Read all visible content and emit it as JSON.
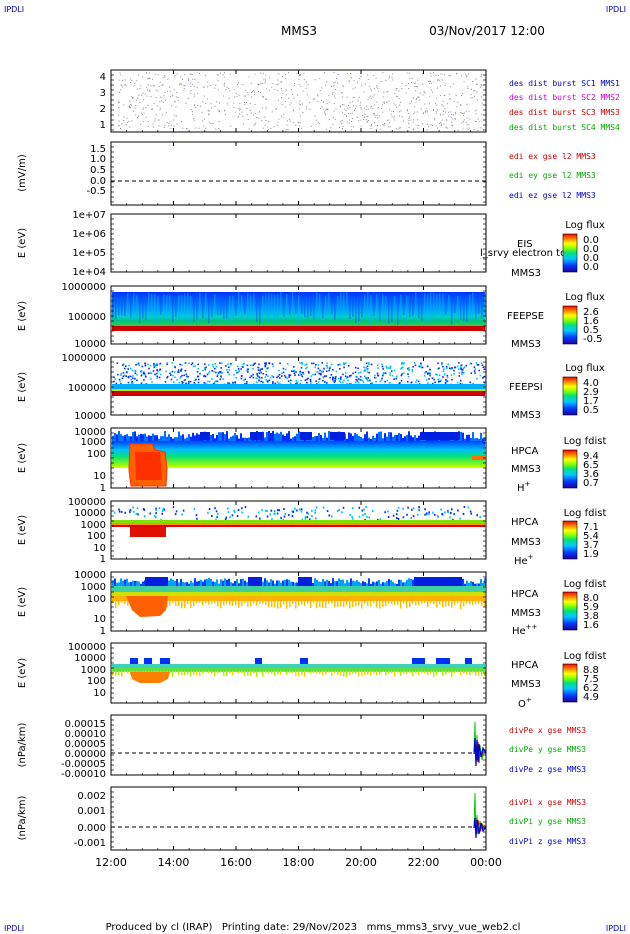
{
  "corner_marks": [
    "IPDLI",
    "IPDLI",
    "IPDLI",
    "IPDLI"
  ],
  "header": {
    "spacecraft": "MMS3",
    "date": "03/Nov/2017 12:00"
  },
  "footer": {
    "text": "Produced by cl (IRAP)   Printing date: 29/Nov/2023   mms_mms3_srvy_vue_web2.cl"
  },
  "colors": {
    "red": "#cc0000",
    "green": "#00cc00",
    "blue": "#0000cc",
    "magenta": "#cc00cc",
    "black": "#000000"
  },
  "chart_data": {
    "type": "multi-panel time series / spectrograms",
    "x": {
      "ticks": [
        "12:00",
        "14:00",
        "16:00",
        "18:00",
        "20:00",
        "22:00",
        "00:00"
      ],
      "range": [
        "12:00",
        "00:00"
      ]
    },
    "panels": [
      {
        "id": "des-dist",
        "type": "scatter",
        "ylabel": "",
        "yticks": [
          "4",
          "3",
          "2",
          "1"
        ],
        "ylim": [
          0.6,
          4.4
        ],
        "legend": [
          {
            "label": "des dist burst SC1 MMS1",
            "color": "#0000cc"
          },
          {
            "label": "des dist burst SC2 MMS2",
            "color": "#cc00cc"
          },
          {
            "label": "des dist burst SC3 MMS3",
            "color": "#cc0000"
          },
          {
            "label": "des dist burst SC4 MMS4",
            "color": "#00cc00"
          }
        ]
      },
      {
        "id": "edi-e",
        "type": "line",
        "ylabel": "(mV/m)",
        "yticks": [
          "1.5",
          "1.0",
          "0.5",
          "0.0",
          "-0.5"
        ],
        "ylim": [
          -0.8,
          1.8
        ],
        "legend": [
          {
            "label": "edi ex gse l2 MMS3",
            "color": "#cc0000"
          },
          {
            "label": "edi ey gse l2 MMS3",
            "color": "#00cc00"
          },
          {
            "label": "edi ez gse l2 MMS3",
            "color": "#0000cc"
          }
        ]
      },
      {
        "id": "eis",
        "type": "heatmap",
        "ylabel": "E (eV)",
        "yticks": [
          "1e+07",
          "1e+06",
          "1e+05",
          "1e+04"
        ],
        "ylim": [
          10000,
          10000000
        ],
        "instrument": "EIS",
        "species": "",
        "sc": "MMS3",
        "overlay": "l_srvy electron to",
        "cbar_title": "Log flux",
        "cbar_ticks": [
          "0.0",
          "0.0",
          "0.0",
          "0.0"
        ]
      },
      {
        "id": "feepse",
        "type": "heatmap",
        "ylabel": "E (eV)",
        "yticks": [
          "1000000",
          "100000",
          "10000"
        ],
        "ylim": [
          10000,
          1000000
        ],
        "instrument": "FEEPSE",
        "species": "",
        "sc": "MMS3",
        "cbar_title": "Log flux",
        "cbar_ticks": [
          "2.6",
          "1.6",
          "0.5",
          "-0.5"
        ]
      },
      {
        "id": "feepsi",
        "type": "heatmap",
        "ylabel": "E (eV)",
        "yticks": [
          "1000000",
          "100000",
          "10000"
        ],
        "ylim": [
          10000,
          1000000
        ],
        "instrument": "FEEPSI",
        "species": "",
        "sc": "MMS3",
        "cbar_title": "Log flux",
        "cbar_ticks": [
          "4.0",
          "2.9",
          "1.7",
          "0.5"
        ]
      },
      {
        "id": "hpca-h",
        "type": "heatmap",
        "ylabel": "E (eV)",
        "yticks": [
          "10000",
          "1000",
          "100",
          "10",
          "1"
        ],
        "ylim": [
          1,
          40000
        ],
        "instrument": "HPCA",
        "sc": "MMS3",
        "species": "H",
        "species_sup": "+",
        "cbar_title": "Log fdist",
        "cbar_ticks": [
          "9.4",
          "6.5",
          "3.6",
          "0.7"
        ]
      },
      {
        "id": "hpca-he",
        "type": "heatmap",
        "ylabel": "E (eV)",
        "yticks": [
          "100000",
          "10000",
          "1000",
          "100",
          "10",
          "1"
        ],
        "ylim": [
          1,
          100000
        ],
        "instrument": "HPCA",
        "sc": "MMS3",
        "species": "He",
        "species_sup": "+",
        "cbar_title": "Log fdist",
        "cbar_ticks": [
          "7.1",
          "5.4",
          "3.7",
          "1.9"
        ]
      },
      {
        "id": "hpca-hepp",
        "type": "heatmap",
        "ylabel": "E (eV)",
        "yticks": [
          "10000",
          "1000",
          "100",
          "10",
          "1"
        ],
        "ylim": [
          1,
          40000
        ],
        "instrument": "HPCA",
        "sc": "MMS3",
        "species": "He",
        "species_sup": "++",
        "cbar_title": "Log fdist",
        "cbar_ticks": [
          "8.0",
          "5.9",
          "3.8",
          "1.6"
        ]
      },
      {
        "id": "hpca-o",
        "type": "heatmap",
        "ylabel": "E (eV)",
        "yticks": [
          "100000",
          "10000",
          "1000",
          "100",
          "10"
        ],
        "ylim": [
          10,
          100000
        ],
        "instrument": "HPCA",
        "sc": "MMS3",
        "species": "O",
        "species_sup": "+",
        "cbar_title": "Log fdist",
        "cbar_ticks": [
          "8.8",
          "7.5",
          "6.2",
          "4.9"
        ]
      },
      {
        "id": "divpe",
        "type": "line",
        "ylabel": "(nPa/km)",
        "yticks": [
          "0.00015",
          "0.00010",
          "0.00005",
          "0.00000",
          "-0.00005",
          "-0.00010"
        ],
        "ylim": [
          -0.00011,
          0.00018
        ],
        "legend": [
          {
            "label": "divPe x gse MMS3",
            "color": "#cc0000"
          },
          {
            "label": "divPe y gse MMS3",
            "color": "#00cc00"
          },
          {
            "label": "divPe z gse MMS3",
            "color": "#0000cc"
          }
        ]
      },
      {
        "id": "divpi",
        "type": "line",
        "ylabel": "(nPa/km)",
        "yticks": [
          "0.002",
          "0.001",
          "0.000",
          "-0.001"
        ],
        "ylim": [
          -0.0013,
          0.0023
        ],
        "legend": [
          {
            "label": "divPi x gse MMS3",
            "color": "#cc0000"
          },
          {
            "label": "divPi y gse MMS3",
            "color": "#00cc00"
          },
          {
            "label": "divPi z gse MMS3",
            "color": "#0000cc"
          }
        ]
      }
    ]
  }
}
